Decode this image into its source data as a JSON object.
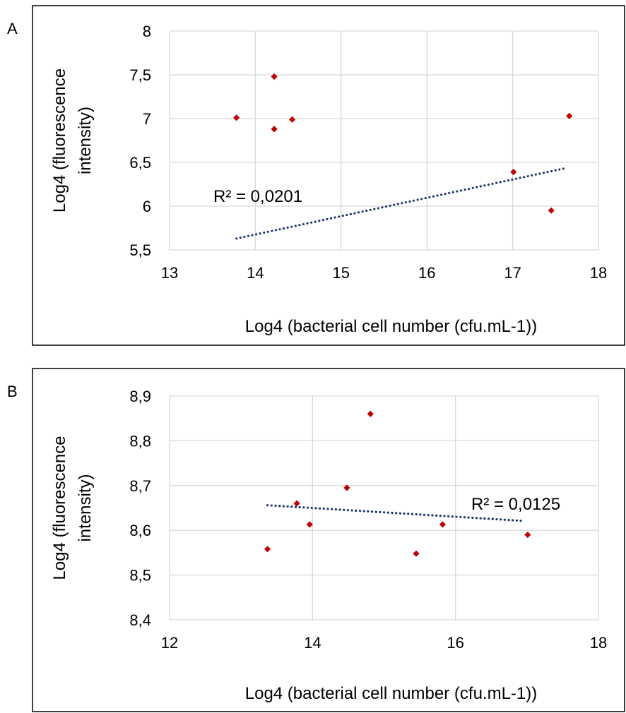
{
  "panel_labels": [
    "A",
    "B"
  ],
  "chart_data": [
    {
      "type": "scatter",
      "panel": "A",
      "xlabel": "Log4 (bacterial cell number (cfu.mL-1))",
      "ylabel": [
        "Log4 (fluorescence",
        "intensity)"
      ],
      "xlim": [
        13,
        18
      ],
      "ylim": [
        5.5,
        8
      ],
      "x_ticks": [
        "13",
        "14",
        "15",
        "16",
        "17",
        "18"
      ],
      "y_ticks": [
        "5,5",
        "6",
        "6,5",
        "7",
        "7,5",
        "8"
      ],
      "grid": true,
      "colors": {
        "points": "#c00000",
        "trendline": "#1f3864"
      },
      "points": [
        {
          "x": 13.78,
          "y": 7.01
        },
        {
          "x": 14.22,
          "y": 7.48
        },
        {
          "x": 14.22,
          "y": 6.88
        },
        {
          "x": 14.43,
          "y": 6.99
        },
        {
          "x": 17.01,
          "y": 6.39
        },
        {
          "x": 17.45,
          "y": 5.95
        },
        {
          "x": 17.66,
          "y": 7.03
        }
      ],
      "trendline": {
        "x": [
          13.78,
          17.6
        ],
        "y": [
          5.63,
          6.43
        ]
      },
      "annotation": "R² = 0,0201"
    },
    {
      "type": "scatter",
      "panel": "B",
      "xlabel": "Log4 (bacterial cell number (cfu.mL-1))",
      "ylabel": [
        "Log4 (fluorescence",
        "intensity)"
      ],
      "xlim": [
        12,
        18
      ],
      "ylim": [
        8.4,
        8.9
      ],
      "x_ticks": [
        "12",
        "14",
        "16",
        "18"
      ],
      "y_ticks": [
        "8,4",
        "8,5",
        "8,6",
        "8,7",
        "8,8",
        "8,9"
      ],
      "grid": true,
      "colors": {
        "points": "#c00000",
        "trendline": "#1f3864"
      },
      "points": [
        {
          "x": 13.37,
          "y": 8.558
        },
        {
          "x": 13.78,
          "y": 8.66
        },
        {
          "x": 13.96,
          "y": 8.613
        },
        {
          "x": 14.48,
          "y": 8.695
        },
        {
          "x": 14.81,
          "y": 8.86
        },
        {
          "x": 15.45,
          "y": 8.548
        },
        {
          "x": 15.82,
          "y": 8.613
        },
        {
          "x": 17.01,
          "y": 8.59
        }
      ],
      "trendline": {
        "x": [
          13.37,
          16.95
        ],
        "y": [
          8.656,
          8.621
        ]
      },
      "annotation": "R² = 0,0125"
    }
  ]
}
